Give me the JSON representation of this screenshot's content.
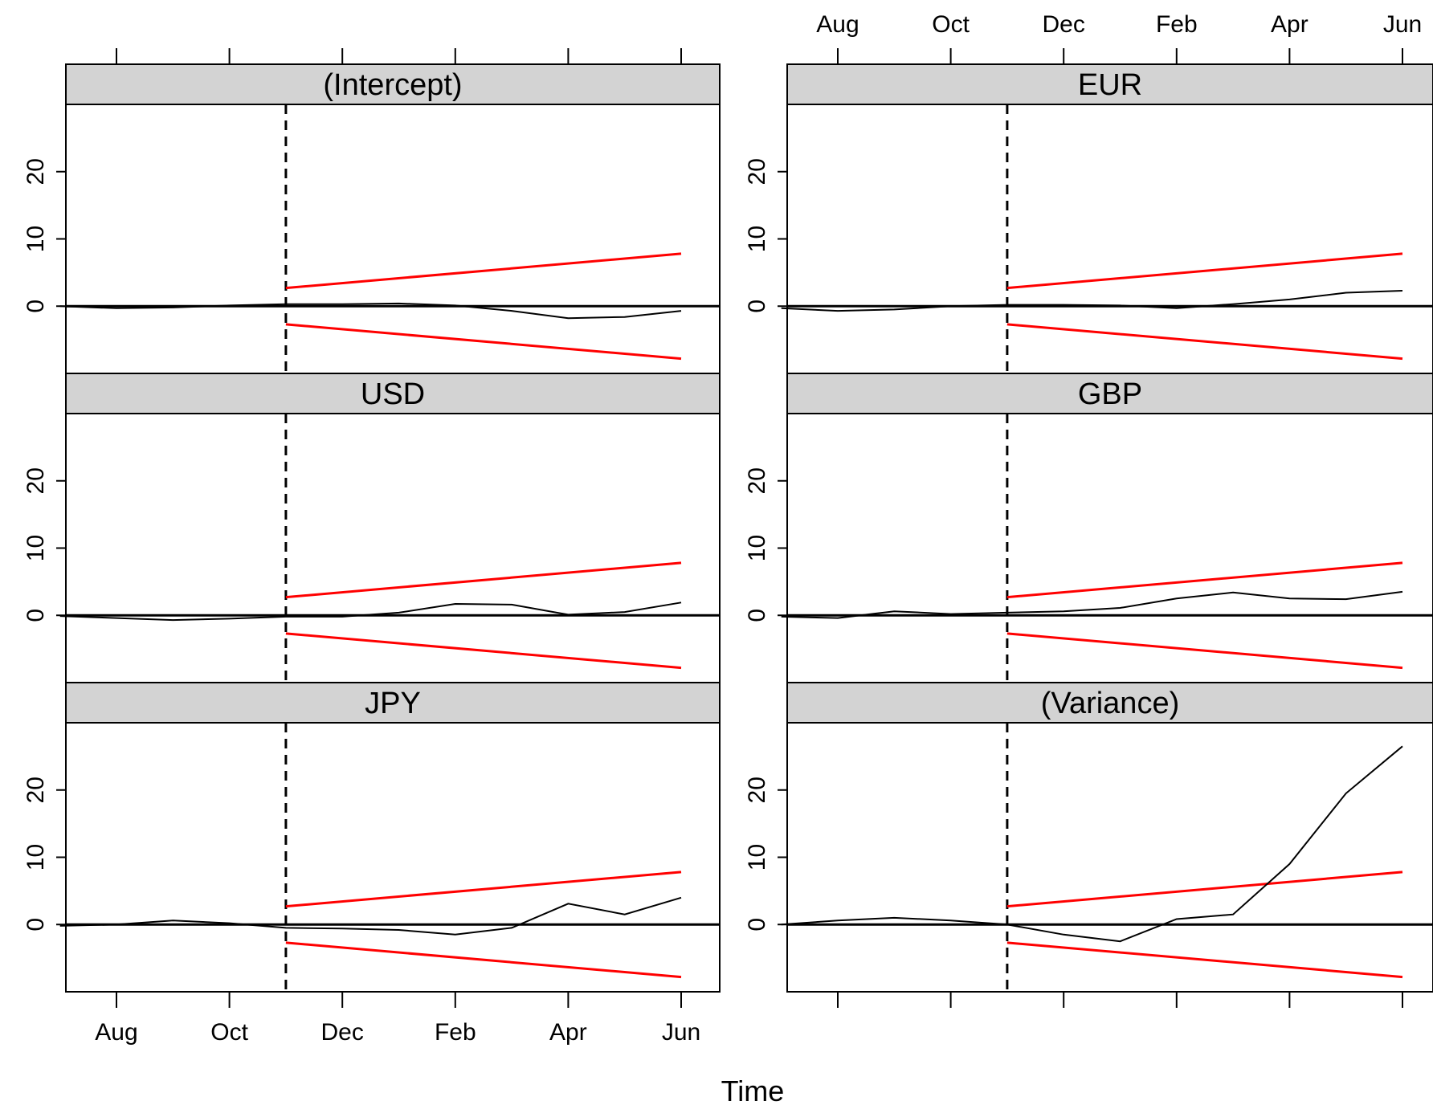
{
  "chart_data": {
    "type": "line",
    "xlabel": "Time",
    "x_ticks": [
      "Aug",
      "Oct",
      "Dec",
      "Feb",
      "Apr",
      "Jun"
    ],
    "y_ticks": [
      0,
      10,
      20
    ],
    "ylim": [
      -10,
      30
    ],
    "grid": false,
    "vertical_reference_line": "Nov",
    "boundary": {
      "color": "#ff0000",
      "start": "Nov",
      "end": "Jun",
      "upper": [
        2.7,
        7.8
      ],
      "lower": [
        -2.7,
        -7.8
      ]
    },
    "panels": [
      {
        "name": "(Intercept)",
        "series": [
          {
            "x": "Jul",
            "y": 0.0
          },
          {
            "x": "Aug",
            "y": -0.3
          },
          {
            "x": "Sep",
            "y": -0.2
          },
          {
            "x": "Oct",
            "y": 0.1
          },
          {
            "x": "Nov",
            "y": 0.3
          },
          {
            "x": "Dec",
            "y": 0.3
          },
          {
            "x": "Jan",
            "y": 0.4
          },
          {
            "x": "Feb",
            "y": 0.1
          },
          {
            "x": "Mar",
            "y": -0.7
          },
          {
            "x": "Apr",
            "y": -1.8
          },
          {
            "x": "May",
            "y": -1.6
          },
          {
            "x": "Jun",
            "y": -0.7
          }
        ]
      },
      {
        "name": "EUR",
        "series": [
          {
            "x": "Jul",
            "y": -0.3
          },
          {
            "x": "Aug",
            "y": -0.7
          },
          {
            "x": "Sep",
            "y": -0.5
          },
          {
            "x": "Oct",
            "y": 0.0
          },
          {
            "x": "Nov",
            "y": 0.2
          },
          {
            "x": "Dec",
            "y": 0.2
          },
          {
            "x": "Jan",
            "y": 0.1
          },
          {
            "x": "Feb",
            "y": -0.3
          },
          {
            "x": "Mar",
            "y": 0.3
          },
          {
            "x": "Apr",
            "y": 1.0
          },
          {
            "x": "May",
            "y": 2.0
          },
          {
            "x": "Jun",
            "y": 2.3
          }
        ]
      },
      {
        "name": "USD",
        "series": [
          {
            "x": "Jul",
            "y": -0.1
          },
          {
            "x": "Aug",
            "y": -0.4
          },
          {
            "x": "Sep",
            "y": -0.7
          },
          {
            "x": "Oct",
            "y": -0.5
          },
          {
            "x": "Nov",
            "y": -0.2
          },
          {
            "x": "Dec",
            "y": -0.2
          },
          {
            "x": "Jan",
            "y": 0.4
          },
          {
            "x": "Feb",
            "y": 1.7
          },
          {
            "x": "Mar",
            "y": 1.6
          },
          {
            "x": "Apr",
            "y": 0.1
          },
          {
            "x": "May",
            "y": 0.5
          },
          {
            "x": "Jun",
            "y": 1.9
          }
        ]
      },
      {
        "name": "GBP",
        "series": [
          {
            "x": "Jul",
            "y": -0.2
          },
          {
            "x": "Aug",
            "y": -0.4
          },
          {
            "x": "Sep",
            "y": 0.6
          },
          {
            "x": "Oct",
            "y": 0.2
          },
          {
            "x": "Nov",
            "y": 0.4
          },
          {
            "x": "Dec",
            "y": 0.6
          },
          {
            "x": "Jan",
            "y": 1.1
          },
          {
            "x": "Feb",
            "y": 2.5
          },
          {
            "x": "Mar",
            "y": 3.4
          },
          {
            "x": "Apr",
            "y": 2.5
          },
          {
            "x": "May",
            "y": 2.4
          },
          {
            "x": "Jun",
            "y": 3.5
          }
        ]
      },
      {
        "name": "JPY",
        "series": [
          {
            "x": "Jul",
            "y": -0.2
          },
          {
            "x": "Aug",
            "y": 0.0
          },
          {
            "x": "Sep",
            "y": 0.6
          },
          {
            "x": "Oct",
            "y": 0.2
          },
          {
            "x": "Nov",
            "y": -0.5
          },
          {
            "x": "Dec",
            "y": -0.6
          },
          {
            "x": "Jan",
            "y": -0.8
          },
          {
            "x": "Feb",
            "y": -1.5
          },
          {
            "x": "Mar",
            "y": -0.5
          },
          {
            "x": "Apr",
            "y": 3.1
          },
          {
            "x": "May",
            "y": 1.5
          },
          {
            "x": "Jun",
            "y": 4.0
          }
        ]
      },
      {
        "name": "(Variance)",
        "series": [
          {
            "x": "Jul",
            "y": 0.0
          },
          {
            "x": "Aug",
            "y": 0.6
          },
          {
            "x": "Sep",
            "y": 1.0
          },
          {
            "x": "Oct",
            "y": 0.6
          },
          {
            "x": "Nov",
            "y": 0.0
          },
          {
            "x": "Dec",
            "y": -1.5
          },
          {
            "x": "Jan",
            "y": -2.5
          },
          {
            "x": "Feb",
            "y": 0.8
          },
          {
            "x": "Mar",
            "y": 1.5
          },
          {
            "x": "Apr",
            "y": 9.0
          },
          {
            "x": "May",
            "y": 19.5
          },
          {
            "x": "Jun",
            "y": 26.5
          }
        ]
      }
    ]
  }
}
